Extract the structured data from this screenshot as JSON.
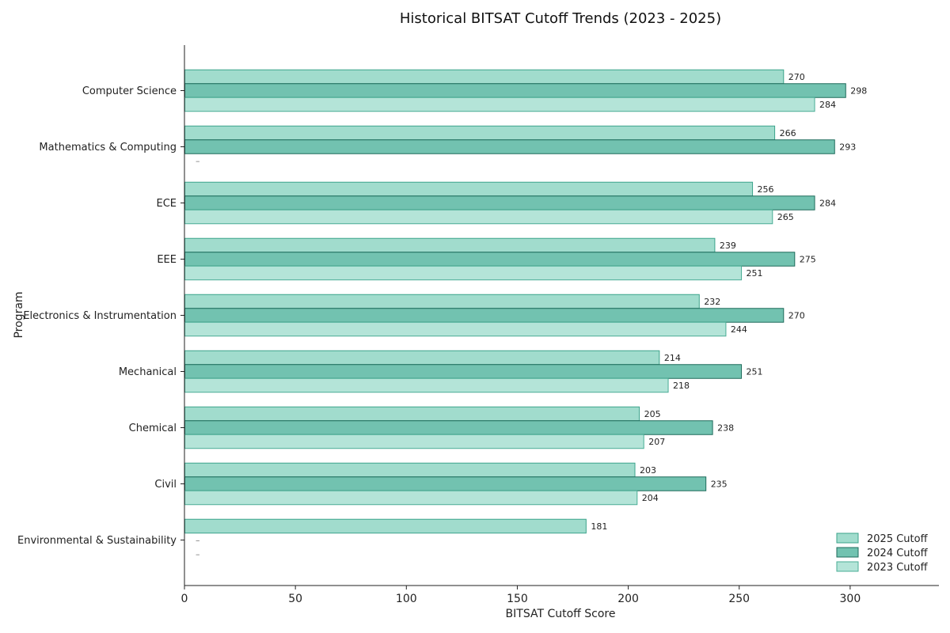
{
  "chart_data": {
    "type": "bar",
    "orientation": "horizontal",
    "title": "Historical BITSAT Cutoff Trends (2023 - 2025)",
    "xlabel": "BITSAT Cutoff Score",
    "ylabel": "Program",
    "xlim": [
      0,
      340
    ],
    "xticks": [
      0,
      50,
      100,
      150,
      200,
      250,
      300
    ],
    "grid": false,
    "legend_position": "bottom-right",
    "missing_marker": "–",
    "categories": [
      "Computer Science",
      "Mathematics & Computing",
      "ECE",
      "EEE",
      "Electronics & Instrumentation",
      "Mechanical",
      "Chemical",
      "Civil",
      "Environmental & Sustainability"
    ],
    "series": [
      {
        "name": "2025 Cutoff",
        "color": "#a1dccd",
        "edge": "#3ca38b",
        "values": [
          270,
          266,
          256,
          239,
          232,
          214,
          205,
          203,
          181
        ]
      },
      {
        "name": "2024 Cutoff",
        "color": "#72c2b0",
        "edge": "#1f6b5b",
        "values": [
          298,
          293,
          284,
          275,
          270,
          251,
          238,
          235,
          null
        ]
      },
      {
        "name": "2023 Cutoff",
        "color": "#b4e4d8",
        "edge": "#49ad95",
        "values": [
          284,
          null,
          265,
          251,
          244,
          218,
          207,
          204,
          null
        ]
      }
    ]
  }
}
